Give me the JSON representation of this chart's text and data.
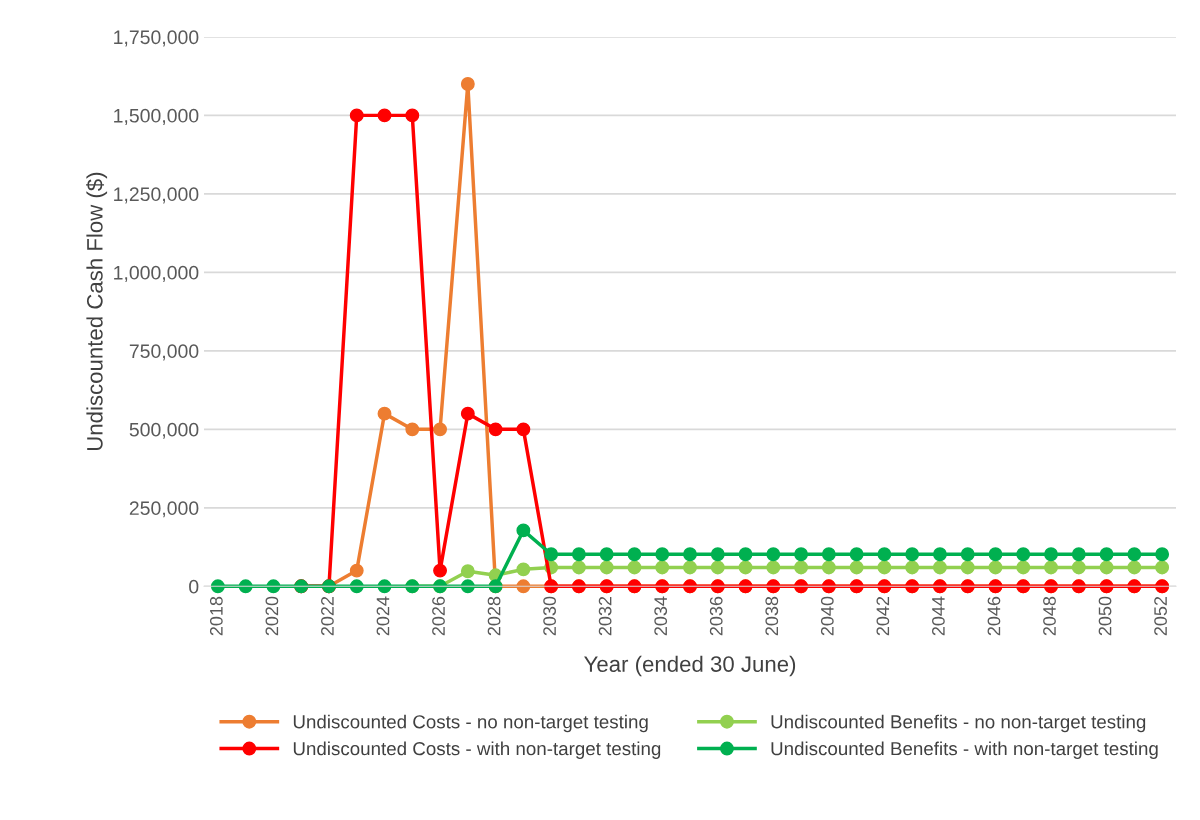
{
  "chart_data": {
    "type": "line",
    "xlabel": "Year (ended 30 June)",
    "ylabel": "Undiscounted Cash Flow ($)",
    "categories": [
      "2018",
      null,
      "2020",
      null,
      "2022",
      null,
      "2024",
      null,
      "2026",
      null,
      "2028",
      null,
      "2030",
      null,
      "2032",
      null,
      "2034",
      null,
      "2036",
      null,
      "2038",
      null,
      "2040",
      null,
      "2042",
      null,
      "2044",
      null,
      "2046",
      null,
      "2048",
      null,
      "2050",
      null,
      "2052"
    ],
    "ylim": [
      0,
      1750000
    ],
    "yticks": [
      {
        "value": 0,
        "label": "0"
      },
      {
        "value": 250000,
        "label": "250,000"
      },
      {
        "value": 500000,
        "label": "500,000"
      },
      {
        "value": 750000,
        "label": "750,000"
      },
      {
        "value": 1000000,
        "label": "1,000,000"
      },
      {
        "value": 1250000,
        "label": "1,250,000"
      },
      {
        "value": 1500000,
        "label": "1,500,000"
      },
      {
        "value": 1750000,
        "label": "1,750,000"
      }
    ],
    "grid": "y",
    "legend": "bottom",
    "marker": "circle",
    "line_style": "solid",
    "series": [
      {
        "name": "Undiscounted Costs - no non-target testing",
        "color": "#ed7d31",
        "values": [
          null,
          null,
          null,
          0,
          0,
          50000,
          550000,
          500000,
          500000,
          1600000,
          0,
          0,
          0,
          0,
          0,
          0,
          0,
          0,
          0,
          0,
          0,
          0,
          0,
          0,
          0,
          0,
          0,
          0,
          0,
          0,
          0,
          0,
          0,
          0,
          0
        ]
      },
      {
        "name": "Undiscounted Benefits - no non-target testing",
        "color": "#92d050",
        "values": [
          null,
          null,
          null,
          null,
          null,
          null,
          null,
          0,
          0,
          48000,
          35000,
          54000,
          60000,
          60000,
          60000,
          60000,
          60000,
          60000,
          60000,
          60000,
          60000,
          60000,
          60000,
          60000,
          60000,
          60000,
          60000,
          60000,
          60000,
          60000,
          60000,
          60000,
          60000,
          60000,
          60000
        ]
      },
      {
        "name": "Undiscounted Costs - with non-target testing",
        "color": "#ff0000",
        "values": [
          null,
          null,
          null,
          0,
          0,
          1500000,
          1500000,
          1500000,
          50000,
          550000,
          500000,
          500000,
          0,
          0,
          0,
          0,
          0,
          0,
          0,
          0,
          0,
          0,
          0,
          0,
          0,
          0,
          0,
          0,
          0,
          0,
          0,
          0,
          0,
          0,
          0
        ]
      },
      {
        "name": "Undiscounted Benefits - with non-target testing",
        "color": "#00b050",
        "values": [
          0,
          0,
          0,
          0,
          0,
          0,
          0,
          0,
          0,
          0,
          0,
          178000,
          102000,
          102000,
          102000,
          102000,
          102000,
          102000,
          102000,
          102000,
          102000,
          102000,
          102000,
          102000,
          102000,
          102000,
          102000,
          102000,
          102000,
          102000,
          102000,
          102000,
          102000,
          102000,
          102000
        ]
      }
    ]
  }
}
